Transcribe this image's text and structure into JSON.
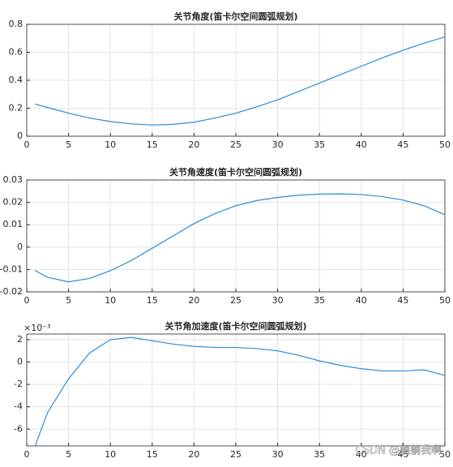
{
  "chart_data": [
    {
      "type": "line",
      "title": "关节角度(笛卡尔空间圆弧规划)",
      "color": "#2b8ad6",
      "grid": true,
      "x": [
        1,
        2.5,
        5,
        7.5,
        10,
        12.5,
        15,
        17.5,
        20,
        22.5,
        25,
        27.5,
        30,
        32.5,
        35,
        37.5,
        40,
        42.5,
        45,
        47.5,
        50
      ],
      "values": [
        0.23,
        0.205,
        0.165,
        0.13,
        0.105,
        0.088,
        0.08,
        0.085,
        0.1,
        0.13,
        0.165,
        0.21,
        0.26,
        0.32,
        0.38,
        0.44,
        0.5,
        0.56,
        0.615,
        0.665,
        0.71
      ],
      "xlim": [
        0,
        50
      ],
      "xticks": [
        0,
        5,
        10,
        15,
        20,
        25,
        30,
        35,
        40,
        45,
        50
      ],
      "ylim": [
        0,
        0.8
      ],
      "yticks": [
        0,
        0.2,
        0.4,
        0.6,
        0.8
      ]
    },
    {
      "type": "line",
      "title": "关节角速度(笛卡尔空间圆弧规划)",
      "color": "#2b8ad6",
      "grid": true,
      "x": [
        1,
        2.5,
        5,
        7.5,
        10,
        12.5,
        15,
        17.5,
        20,
        22.5,
        25,
        27.5,
        30,
        32.5,
        35,
        37.5,
        40,
        42.5,
        45,
        47.5,
        50
      ],
      "values": [
        -0.0105,
        -0.0135,
        -0.0155,
        -0.014,
        -0.0105,
        -0.006,
        -0.0005,
        0.005,
        0.0105,
        0.015,
        0.0185,
        0.0208,
        0.0222,
        0.0232,
        0.0237,
        0.0238,
        0.0235,
        0.0226,
        0.021,
        0.0185,
        0.0145
      ],
      "xlim": [
        0,
        50
      ],
      "xticks": [
        0,
        5,
        10,
        15,
        20,
        25,
        30,
        35,
        40,
        45,
        50
      ],
      "ylim": [
        -0.02,
        0.03
      ],
      "yticks": [
        -0.02,
        -0.01,
        0,
        0.01,
        0.02,
        0.03
      ]
    },
    {
      "type": "line",
      "title": "关节角加速度(笛卡尔空间圆弧规划)",
      "color": "#2b8ad6",
      "grid": true,
      "exponent_label": "×10⁻³",
      "x": [
        1,
        2.5,
        5,
        7.5,
        10,
        12.5,
        15,
        17.5,
        20,
        22.5,
        25,
        27.5,
        30,
        32.5,
        35,
        37.5,
        40,
        42.5,
        45,
        47.5,
        50
      ],
      "values": [
        -7.5,
        -4.5,
        -1.5,
        0.8,
        2.0,
        2.2,
        1.9,
        1.6,
        1.4,
        1.3,
        1.3,
        1.2,
        1.0,
        0.6,
        0.1,
        -0.3,
        -0.6,
        -0.8,
        -0.8,
        -0.7,
        -1.2
      ],
      "xlim": [
        0,
        50
      ],
      "xticks": [
        0,
        5,
        10,
        15,
        20,
        25,
        30,
        35,
        40,
        45,
        50
      ],
      "ylim": [
        -7.5,
        2.5
      ],
      "yticks": [
        -6,
        -4,
        -2,
        0,
        2
      ]
    }
  ],
  "watermark": "CSDN @躺躺我啊"
}
